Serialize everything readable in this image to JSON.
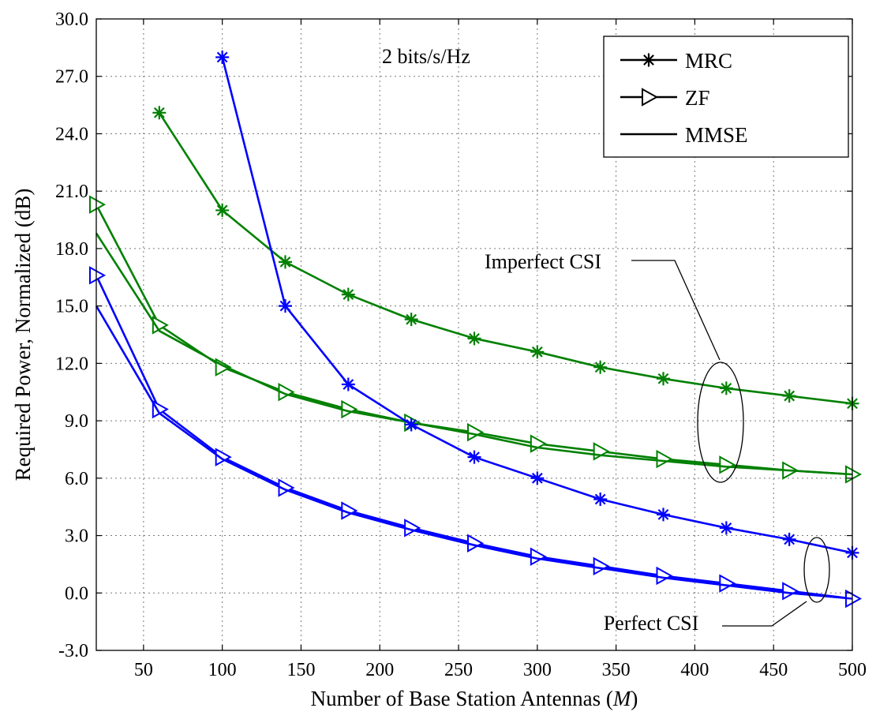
{
  "chart_data": {
    "type": "line",
    "xlabel_prefix": "Number of Base Station Antennas (",
    "xlabel_var": "M",
    "xlabel_suffix": ")",
    "ylabel": "Required Power, Normalized (dB)",
    "xlim": [
      20,
      500
    ],
    "ylim": [
      -3,
      30
    ],
    "x_ticks": [
      50,
      100,
      150,
      200,
      250,
      300,
      350,
      400,
      450,
      500
    ],
    "y_ticks": [
      -3.0,
      0.0,
      3.0,
      6.0,
      9.0,
      12.0,
      15.0,
      18.0,
      21.0,
      24.0,
      27.0,
      30.0
    ],
    "y_tick_labels": [
      "-3.0",
      "0.0",
      "3.0",
      "6.0",
      "9.0",
      "12.0",
      "15.0",
      "18.0",
      "21.0",
      "24.0",
      "27.0",
      "30.0"
    ],
    "grid": true,
    "legend_position": "top-right",
    "legend": [
      {
        "label": "MRC",
        "marker": "asterisk"
      },
      {
        "label": "ZF",
        "marker": "triangle-right"
      },
      {
        "label": "MMSE",
        "marker": "none"
      }
    ],
    "colors": {
      "perfect_csi": "#0000ff",
      "imperfect_csi": "#008000",
      "annotation": "#000000"
    },
    "annotations": {
      "rate": "2 bits/s/Hz",
      "imperfect": "Imperfect CSI",
      "perfect": "Perfect CSI"
    },
    "series": [
      {
        "csi": "imperfect",
        "scheme": "MRC",
        "marker": "asterisk",
        "x": [
          60,
          100,
          140,
          180,
          220,
          260,
          300,
          340,
          380,
          420,
          460,
          500
        ],
        "y": [
          25.1,
          20.0,
          17.3,
          15.6,
          14.3,
          13.3,
          12.6,
          11.8,
          11.2,
          10.7,
          10.3,
          9.9
        ]
      },
      {
        "csi": "imperfect",
        "scheme": "ZF",
        "marker": "triangle-right",
        "x": [
          20,
          60,
          100,
          140,
          180,
          220,
          260,
          300,
          340,
          380,
          420,
          460,
          500
        ],
        "y": [
          20.3,
          14.0,
          11.8,
          10.5,
          9.6,
          8.9,
          8.4,
          7.8,
          7.4,
          7.0,
          6.7,
          6.4,
          6.2
        ]
      },
      {
        "csi": "imperfect",
        "scheme": "MMSE",
        "marker": "none",
        "x": [
          20,
          60,
          100,
          140,
          180,
          220,
          260,
          300,
          340,
          380,
          420,
          460,
          500
        ],
        "y": [
          18.8,
          13.7,
          11.9,
          10.4,
          9.5,
          8.9,
          8.3,
          7.6,
          7.2,
          6.9,
          6.6,
          6.4,
          6.2
        ]
      },
      {
        "csi": "perfect",
        "scheme": "MRC",
        "marker": "asterisk",
        "x": [
          100,
          140,
          180,
          220,
          260,
          300,
          340,
          380,
          420,
          460,
          500
        ],
        "y": [
          28.0,
          15.0,
          10.9,
          8.8,
          7.1,
          6.0,
          4.9,
          4.1,
          3.4,
          2.8,
          2.1
        ]
      },
      {
        "csi": "perfect",
        "scheme": "ZF",
        "marker": "triangle-right",
        "x": [
          20,
          60,
          100,
          140,
          180,
          220,
          260,
          300,
          340,
          380,
          420,
          460,
          500
        ],
        "y": [
          16.6,
          9.6,
          7.1,
          5.5,
          4.3,
          3.4,
          2.6,
          1.9,
          1.4,
          0.9,
          0.5,
          0.1,
          -0.3
        ]
      },
      {
        "csi": "perfect",
        "scheme": "MMSE",
        "marker": "none",
        "x": [
          20,
          60,
          100,
          140,
          180,
          220,
          260,
          300,
          340,
          380,
          420,
          460,
          500
        ],
        "y": [
          15.0,
          9.4,
          7.0,
          5.4,
          4.2,
          3.3,
          2.5,
          1.8,
          1.3,
          0.8,
          0.4,
          0.0,
          -0.3
        ]
      }
    ]
  }
}
